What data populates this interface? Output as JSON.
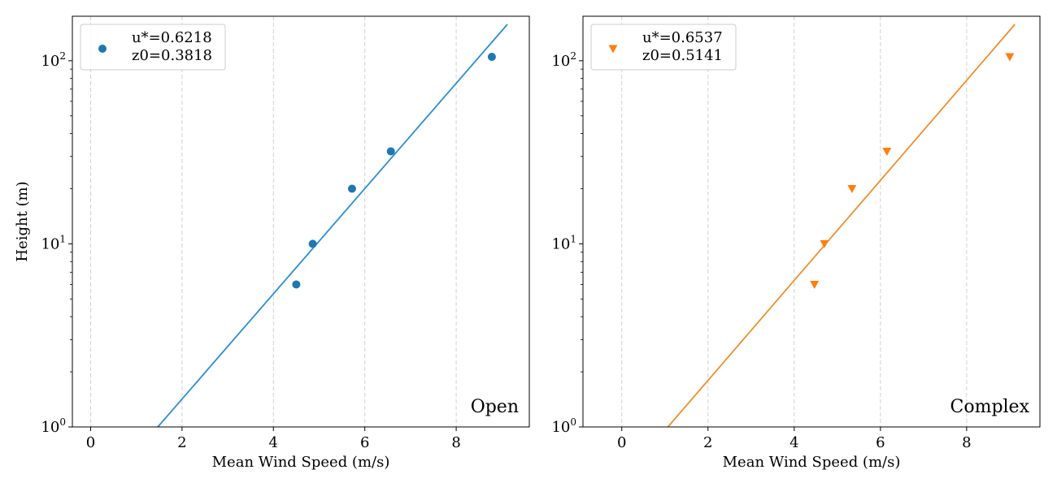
{
  "chart_data": [
    {
      "type": "scatter",
      "panel_label": "Open",
      "xlabel": "Mean Wind Speed (m/s)",
      "ylabel": "Height (m)",
      "xlim": [
        -0.4,
        9.6
      ],
      "ylim": [
        1,
        175
      ],
      "yscale": "log",
      "xticks": [
        0,
        2,
        4,
        6,
        8
      ],
      "yticks": [
        {
          "value": 1,
          "base": "10",
          "exp": "0"
        },
        {
          "value": 10,
          "base": "10",
          "exp": "1"
        },
        {
          "value": 100,
          "base": "10",
          "exp": "2"
        }
      ],
      "grid": "vertical dashed",
      "legend_position": "top-left",
      "legend": [
        "u*=0.6218",
        "z0=0.3818"
      ],
      "color": "#1f77b4",
      "line_color": "#2a8fd6",
      "marker": "circle",
      "series": [
        {
          "points": [
            {
              "x": 4.5,
              "y": 6
            },
            {
              "x": 4.86,
              "y": 10
            },
            {
              "x": 5.72,
              "y": 20
            },
            {
              "x": 6.57,
              "y": 32
            },
            {
              "x": 8.78,
              "y": 105
            }
          ]
        }
      ],
      "fit_line": {
        "x": [
          1.47,
          9.12
        ],
        "y": [
          1,
          158
        ]
      }
    },
    {
      "type": "scatter",
      "panel_label": "Complex",
      "xlabel": "Mean Wind Speed (m/s)",
      "ylabel": "",
      "xlim": [
        -0.9,
        9.7
      ],
      "ylim": [
        1,
        175
      ],
      "yscale": "log",
      "xticks": [
        0,
        2,
        4,
        6,
        8
      ],
      "yticks": [
        {
          "value": 1,
          "base": "10",
          "exp": "0"
        },
        {
          "value": 10,
          "base": "10",
          "exp": "1"
        },
        {
          "value": 100,
          "base": "10",
          "exp": "2"
        }
      ],
      "grid": "vertical dashed",
      "legend_position": "top-left",
      "legend": [
        "u*=0.6537",
        "z0=0.5141"
      ],
      "color": "#ff7f0e",
      "line_color": "#f28e2b",
      "marker": "triangle-down",
      "series": [
        {
          "points": [
            {
              "x": 4.47,
              "y": 6
            },
            {
              "x": 4.7,
              "y": 10
            },
            {
              "x": 5.34,
              "y": 20
            },
            {
              "x": 6.15,
              "y": 32
            },
            {
              "x": 9.0,
              "y": 105
            }
          ]
        }
      ],
      "fit_line": {
        "x": [
          1.07,
          9.12
        ],
        "y": [
          1,
          158
        ]
      }
    }
  ]
}
